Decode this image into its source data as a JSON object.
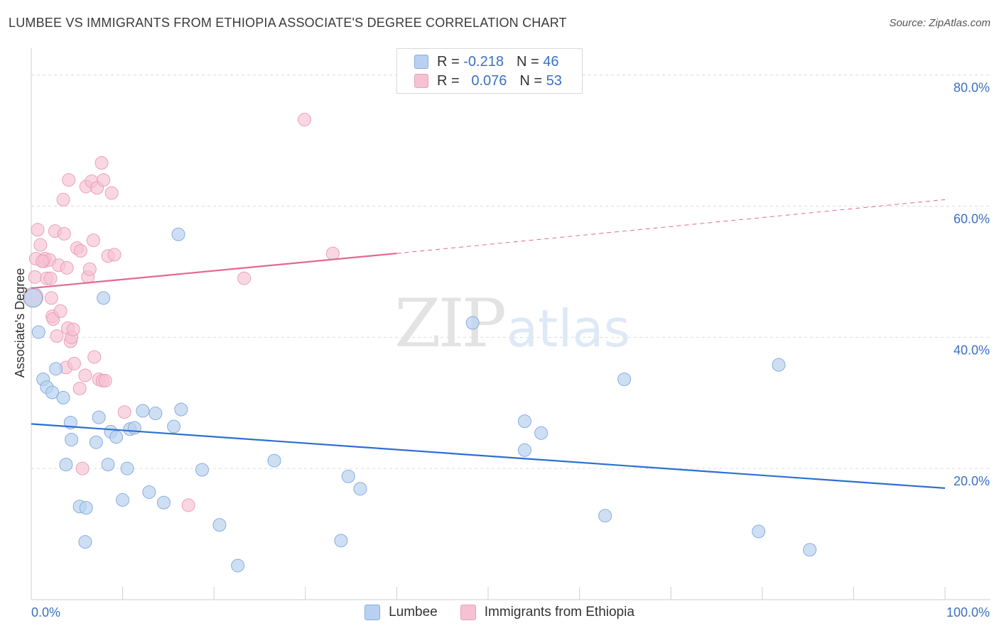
{
  "header": {
    "title": "LUMBEE VS IMMIGRANTS FROM ETHIOPIA ASSOCIATE'S DEGREE CORRELATION CHART",
    "source": "Source: ZipAtlas.com"
  },
  "watermark": {
    "zip": "ZIP",
    "atlas": "atlas"
  },
  "stats_legend": {
    "rows": [
      {
        "r_label": "R =",
        "r_value": "-0.218",
        "n_label": "N =",
        "n_value": "46"
      },
      {
        "r_label": "R =",
        "r_value": "0.076",
        "n_label": "N =",
        "n_value": "53"
      }
    ]
  },
  "colors": {
    "lumbee_fill": "#b9d1f0",
    "lumbee_stroke": "#86aee0",
    "lumbee_line": "#2d6fd0",
    "ethiopia_fill": "#f6c1d3",
    "ethiopia_stroke": "#eb9fba",
    "ethiopia_line": "#e3688f",
    "tick_label": "#3a70c4",
    "grid": "#dcdcdc"
  },
  "chart_data": {
    "type": "scatter",
    "title": "LUMBEE VS IMMIGRANTS FROM ETHIOPIA ASSOCIATE'S DEGREE CORRELATION CHART",
    "xlabel": "",
    "ylabel": "Associate's Degree",
    "xlim": [
      0,
      100
    ],
    "ylim": [
      0,
      83
    ],
    "x_tick_labels": [
      "0.0%",
      "100.0%"
    ],
    "y_ticks": [
      20,
      40,
      60,
      80
    ],
    "y_tick_labels": [
      "20.0%",
      "40.0%",
      "60.0%",
      "80.0%"
    ],
    "grid": true,
    "legend_position": "bottom",
    "series": [
      {
        "name": "Lumbee",
        "color": "#b9d1f0",
        "points": [
          [
            0.2,
            46.0
          ],
          [
            0.8,
            40.8
          ],
          [
            1.3,
            33.6
          ],
          [
            1.7,
            32.4
          ],
          [
            2.3,
            31.6
          ],
          [
            2.7,
            35.2
          ],
          [
            3.5,
            30.8
          ],
          [
            4.3,
            27.0
          ],
          [
            3.8,
            20.6
          ],
          [
            4.4,
            24.4
          ],
          [
            5.3,
            14.2
          ],
          [
            6.0,
            14.0
          ],
          [
            5.9,
            8.8
          ],
          [
            7.1,
            24.0
          ],
          [
            7.4,
            27.8
          ],
          [
            8.4,
            20.6
          ],
          [
            8.7,
            25.6
          ],
          [
            9.3,
            24.8
          ],
          [
            10.0,
            15.2
          ],
          [
            10.5,
            20.0
          ],
          [
            10.8,
            26.0
          ],
          [
            11.3,
            26.2
          ],
          [
            12.2,
            28.8
          ],
          [
            12.9,
            16.4
          ],
          [
            13.6,
            28.4
          ],
          [
            14.5,
            14.8
          ],
          [
            15.6,
            26.4
          ],
          [
            16.4,
            29.0
          ],
          [
            16.1,
            55.7
          ],
          [
            18.7,
            19.8
          ],
          [
            20.6,
            11.4
          ],
          [
            22.6,
            5.2
          ],
          [
            26.6,
            21.2
          ],
          [
            33.9,
            9.0
          ],
          [
            34.7,
            18.8
          ],
          [
            36.0,
            16.9
          ],
          [
            48.3,
            42.2
          ],
          [
            54.0,
            27.2
          ],
          [
            54.0,
            22.8
          ],
          [
            55.8,
            25.4
          ],
          [
            62.8,
            12.8
          ],
          [
            64.9,
            33.6
          ],
          [
            79.6,
            10.4
          ],
          [
            81.8,
            35.8
          ],
          [
            85.2,
            7.6
          ],
          [
            7.9,
            46.0
          ]
        ],
        "trend": {
          "x": [
            0,
            100
          ],
          "y": [
            26.8,
            17.0
          ]
        }
      },
      {
        "name": "Immigrants from Ethiopia",
        "color": "#f6c1d3",
        "points": [
          [
            0.2,
            46.1
          ],
          [
            0.5,
            52.0
          ],
          [
            0.4,
            49.2
          ],
          [
            0.7,
            56.4
          ],
          [
            1.0,
            54.1
          ],
          [
            1.4,
            51.6
          ],
          [
            1.5,
            52.0
          ],
          [
            1.7,
            49.0
          ],
          [
            2.0,
            51.8
          ],
          [
            2.1,
            49.0
          ],
          [
            2.2,
            46.0
          ],
          [
            2.3,
            43.2
          ],
          [
            2.4,
            42.8
          ],
          [
            2.6,
            56.2
          ],
          [
            2.8,
            40.2
          ],
          [
            3.0,
            51.0
          ],
          [
            3.2,
            44.0
          ],
          [
            3.5,
            61.0
          ],
          [
            3.6,
            55.8
          ],
          [
            3.8,
            35.4
          ],
          [
            3.9,
            50.6
          ],
          [
            4.0,
            41.4
          ],
          [
            4.1,
            64.0
          ],
          [
            4.3,
            39.4
          ],
          [
            4.4,
            40.0
          ],
          [
            4.6,
            41.2
          ],
          [
            4.7,
            36.0
          ],
          [
            5.0,
            53.6
          ],
          [
            5.3,
            32.2
          ],
          [
            5.4,
            53.2
          ],
          [
            5.6,
            20.0
          ],
          [
            5.9,
            34.2
          ],
          [
            6.0,
            63.0
          ],
          [
            6.2,
            49.2
          ],
          [
            6.4,
            50.4
          ],
          [
            6.6,
            63.8
          ],
          [
            6.8,
            54.8
          ],
          [
            6.9,
            37.0
          ],
          [
            7.2,
            62.8
          ],
          [
            7.4,
            33.6
          ],
          [
            7.7,
            66.6
          ],
          [
            7.8,
            33.4
          ],
          [
            7.9,
            64.0
          ],
          [
            8.1,
            33.4
          ],
          [
            8.4,
            52.4
          ],
          [
            8.8,
            62.0
          ],
          [
            9.1,
            52.6
          ],
          [
            10.2,
            28.6
          ],
          [
            17.2,
            14.4
          ],
          [
            23.3,
            49.0
          ],
          [
            29.9,
            73.2
          ],
          [
            33.0,
            52.8
          ],
          [
            1.2,
            51.6
          ]
        ],
        "trend_solid": {
          "x": [
            0,
            40
          ],
          "y": [
            47.5,
            52.8
          ]
        },
        "trend_dashed": {
          "x": [
            40,
            100
          ],
          "y": [
            52.8,
            61.0
          ]
        }
      }
    ]
  },
  "bottom_legend": {
    "items": [
      {
        "label": "Lumbee"
      },
      {
        "label": "Immigrants from Ethiopia"
      }
    ]
  }
}
